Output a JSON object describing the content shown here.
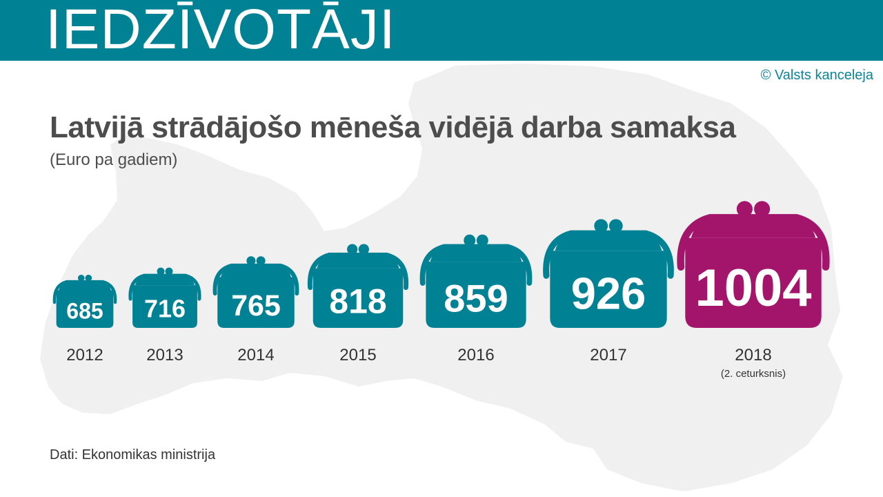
{
  "header": {
    "title": "IEDZĪVOTĀJI"
  },
  "copyright": "© Valsts kanceleja",
  "colors": {
    "teal": "#008194",
    "highlight": "#a3146b",
    "map": "#f0f0f0"
  },
  "chart_data": {
    "type": "bar",
    "title": "Latvijā strādājošo mēneša vidējā darba samaksa",
    "subtitle": "(Euro pa gadiem)",
    "categories": [
      "2012",
      "2013",
      "2014",
      "2015",
      "2016",
      "2017",
      "2018"
    ],
    "category_notes": [
      "",
      "",
      "",
      "",
      "",
      "",
      "(2. ceturksnis)"
    ],
    "values": [
      685,
      716,
      765,
      818,
      859,
      926,
      1004
    ],
    "highlight_index": 6
  },
  "source": "Dati: Ekonomikas ministrija"
}
